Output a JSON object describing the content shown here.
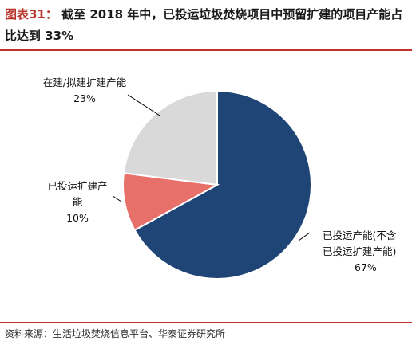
{
  "figure": {
    "label": "图表31：",
    "title": "截至 2018 年中，已投运垃圾焚烧项目中预留扩建的项目产能占比达到 33%"
  },
  "source": "资料来源：生活垃圾焚烧信息平台、华泰证券研究所",
  "chart_data": {
    "type": "pie",
    "title": "截至 2018 年中，已投运垃圾焚烧项目中预留扩建的项目产能占比达到 33%",
    "slices": [
      {
        "label": "已投运产能(不含已投运扩建产能)",
        "label_lines": [
          "已投运产能(不含",
          "已投运扩建产能)"
        ],
        "value": 67,
        "value_label": "67%",
        "color": "#1f4576"
      },
      {
        "label": "已投运扩建产能",
        "label_lines": [
          "已投运扩建产",
          "能"
        ],
        "value": 10,
        "value_label": "10%",
        "color": "#e8706b"
      },
      {
        "label": "在建/拟建扩建产能",
        "label_lines": [
          "在建/拟建扩建产能"
        ],
        "value": 23,
        "value_label": "23%",
        "color": "#d9d9d9"
      }
    ],
    "start_angle_deg": 0,
    "direction": "clockwise",
    "legend": "none"
  }
}
